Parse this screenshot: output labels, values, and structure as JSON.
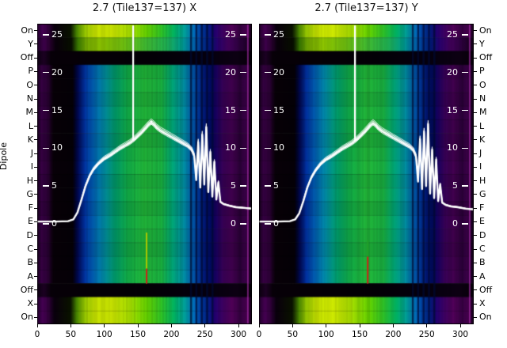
{
  "figure": {
    "dipole_axis_label": "Dipole",
    "background": "#ffffff",
    "text_color": "#000000",
    "curve_color": "#ffffff"
  },
  "chart_data": {
    "type": "heatmap",
    "x_range": [
      0,
      320
    ],
    "x_tick_values": [
      0,
      50,
      100,
      150,
      200,
      250,
      300
    ],
    "x_tick_labels": [
      "0",
      "50",
      "100",
      "150",
      "200",
      "250",
      "300"
    ],
    "amp_values": [
      25,
      20,
      15,
      10,
      5,
      0
    ],
    "amp_tick_labels": [
      "25",
      "20",
      "15",
      "10",
      "5",
      "0"
    ],
    "amp_range": [
      0,
      25
    ],
    "row_labels": [
      "On",
      "Y",
      "Off",
      "P",
      "O",
      "N",
      "M",
      "L",
      "K",
      "J",
      "I",
      "H",
      "G",
      "F",
      "E",
      "D",
      "C",
      "B",
      "A",
      "Off",
      "X",
      "On"
    ],
    "row_types": [
      "bright",
      "mid",
      "off",
      "body",
      "body",
      "body",
      "body",
      "body",
      "body",
      "body",
      "body",
      "body",
      "body",
      "body",
      "body",
      "body",
      "body",
      "body",
      "body",
      "off",
      "bright",
      "bright"
    ],
    "stripes_x": [
      229,
      237,
      245,
      253,
      261
    ],
    "edge_line": {
      "x": 314,
      "color": "#c233c2"
    },
    "palettes": {
      "bright": [
        [
          0,
          "#20002a"
        ],
        [
          0.025,
          "#4a0058"
        ],
        [
          0.055,
          "#2e0038"
        ],
        [
          0.08,
          "#0a000e"
        ],
        [
          0.155,
          "#0a1400"
        ],
        [
          0.185,
          "#4a8800"
        ],
        [
          0.22,
          "#96c800"
        ],
        [
          0.27,
          "#c8e400"
        ],
        [
          0.35,
          "#d2ee00"
        ],
        [
          0.43,
          "#a8e000"
        ],
        [
          0.51,
          "#66d400"
        ],
        [
          0.58,
          "#2ec428"
        ],
        [
          0.64,
          "#00b464"
        ],
        [
          0.69,
          "#009e9e"
        ],
        [
          0.73,
          "#0070c0"
        ],
        [
          0.76,
          "#0040a4"
        ],
        [
          0.795,
          "#002084"
        ],
        [
          0.825,
          "#220074"
        ],
        [
          0.865,
          "#400064"
        ],
        [
          0.905,
          "#52005a"
        ],
        [
          0.945,
          "#360042"
        ],
        [
          0.975,
          "#46004e"
        ],
        [
          1,
          "#140018"
        ]
      ],
      "mid": [
        [
          0,
          "#1c0024"
        ],
        [
          0.03,
          "#40004e"
        ],
        [
          0.06,
          "#28002e"
        ],
        [
          0.085,
          "#0a000c"
        ],
        [
          0.16,
          "#081000"
        ],
        [
          0.19,
          "#3a7a00"
        ],
        [
          0.23,
          "#74aa00"
        ],
        [
          0.3,
          "#8ec600"
        ],
        [
          0.4,
          "#72c210"
        ],
        [
          0.5,
          "#42ba30"
        ],
        [
          0.6,
          "#20b052"
        ],
        [
          0.67,
          "#009e8a"
        ],
        [
          0.72,
          "#0072b2"
        ],
        [
          0.76,
          "#003c9a"
        ],
        [
          0.8,
          "#001a7a"
        ],
        [
          0.84,
          "#28006e"
        ],
        [
          0.89,
          "#44005e"
        ],
        [
          0.94,
          "#2e0040"
        ],
        [
          1,
          "#140018"
        ]
      ],
      "body": [
        [
          0,
          "#16001c"
        ],
        [
          0.02,
          "#3a0048"
        ],
        [
          0.05,
          "#2c0036"
        ],
        [
          0.075,
          "#090009"
        ],
        [
          0.165,
          "#060008"
        ],
        [
          0.19,
          "#000a54"
        ],
        [
          0.22,
          "#0032a4"
        ],
        [
          0.26,
          "#0062ba"
        ],
        [
          0.31,
          "#0090aa"
        ],
        [
          0.36,
          "#00a272"
        ],
        [
          0.42,
          "#12b04a"
        ],
        [
          0.5,
          "#22b83a"
        ],
        [
          0.58,
          "#1ab242"
        ],
        [
          0.63,
          "#00aa7a"
        ],
        [
          0.68,
          "#0092a2"
        ],
        [
          0.72,
          "#0062b2"
        ],
        [
          0.755,
          "#003294"
        ],
        [
          0.78,
          "#00187a"
        ],
        [
          0.805,
          "#000c62"
        ],
        [
          0.835,
          "#1c0062"
        ],
        [
          0.865,
          "#3a005a"
        ],
        [
          0.905,
          "#440052"
        ],
        [
          0.945,
          "#2c003a"
        ],
        [
          0.97,
          "#3c004a"
        ],
        [
          1,
          "#100016"
        ]
      ],
      "off": [
        [
          0,
          "#0c0010"
        ],
        [
          0.03,
          "#1e0026"
        ],
        [
          0.065,
          "#080009"
        ],
        [
          0.5,
          "#040006"
        ],
        [
          0.8,
          "#060010"
        ],
        [
          0.93,
          "#0e0014"
        ],
        [
          1,
          "#070009"
        ]
      ]
    },
    "panels": [
      {
        "title": "2.7 (Tile137=137) X",
        "spike_x": 143,
        "markers": [
          {
            "x": 163,
            "f0": 0.695,
            "f1": 0.815,
            "color": "#aac800",
            "w": 2
          },
          {
            "x": 163,
            "f0": 0.815,
            "f1": 0.865,
            "color": "#cc2418",
            "w": 2
          }
        ],
        "line": [
          [
            0,
            0.3
          ],
          [
            28,
            0.3
          ],
          [
            46,
            0.35
          ],
          [
            54,
            0.6
          ],
          [
            60,
            1.5
          ],
          [
            66,
            3.2
          ],
          [
            72,
            5.0
          ],
          [
            78,
            6.3
          ],
          [
            84,
            7.2
          ],
          [
            92,
            8.0
          ],
          [
            100,
            8.6
          ],
          [
            108,
            9.0
          ],
          [
            116,
            9.5
          ],
          [
            124,
            10.0
          ],
          [
            132,
            10.4
          ],
          [
            138,
            10.7
          ],
          [
            144,
            11.1
          ],
          [
            150,
            11.6
          ],
          [
            156,
            12.1
          ],
          [
            161,
            12.6
          ],
          [
            166,
            13.1
          ],
          [
            170,
            13.4
          ],
          [
            174,
            13.1
          ],
          [
            178,
            12.7
          ],
          [
            184,
            12.3
          ],
          [
            192,
            11.9
          ],
          [
            200,
            11.5
          ],
          [
            208,
            11.1
          ],
          [
            216,
            10.7
          ],
          [
            224,
            10.3
          ],
          [
            230,
            9.8
          ],
          [
            234,
            9.0
          ],
          [
            237,
            5.8
          ],
          [
            240,
            10.8
          ],
          [
            243,
            4.8
          ],
          [
            246,
            11.8
          ],
          [
            249,
            5.2
          ],
          [
            252,
            12.8
          ],
          [
            255,
            4.2
          ],
          [
            258,
            9.5
          ],
          [
            261,
            3.6
          ],
          [
            264,
            8.2
          ],
          [
            267,
            3.2
          ],
          [
            270,
            5.5
          ],
          [
            273,
            2.9
          ],
          [
            278,
            2.6
          ],
          [
            286,
            2.4
          ],
          [
            296,
            2.2
          ],
          [
            308,
            2.1
          ],
          [
            320,
            2.0
          ]
        ]
      },
      {
        "title": "2.7 (Tile137=137) Y",
        "spike_x": 143,
        "markers": [
          {
            "x": 162,
            "f0": 0.72,
            "f1": 0.775,
            "color": "#22a02a",
            "w": 2
          },
          {
            "x": 162,
            "f0": 0.775,
            "f1": 0.865,
            "color": "#cc2418",
            "w": 2
          }
        ],
        "line": [
          [
            0,
            0.3
          ],
          [
            28,
            0.3
          ],
          [
            46,
            0.35
          ],
          [
            54,
            0.6
          ],
          [
            60,
            1.4
          ],
          [
            66,
            3.0
          ],
          [
            72,
            4.8
          ],
          [
            78,
            6.1
          ],
          [
            84,
            7.0
          ],
          [
            92,
            7.9
          ],
          [
            100,
            8.5
          ],
          [
            108,
            8.9
          ],
          [
            116,
            9.4
          ],
          [
            124,
            9.9
          ],
          [
            132,
            10.3
          ],
          [
            138,
            10.6
          ],
          [
            144,
            11.0
          ],
          [
            150,
            11.5
          ],
          [
            156,
            12.0
          ],
          [
            161,
            12.5
          ],
          [
            166,
            13.0
          ],
          [
            170,
            13.3
          ],
          [
            174,
            13.0
          ],
          [
            178,
            12.6
          ],
          [
            184,
            12.2
          ],
          [
            192,
            11.8
          ],
          [
            200,
            11.4
          ],
          [
            208,
            11.0
          ],
          [
            216,
            10.6
          ],
          [
            224,
            10.2
          ],
          [
            230,
            9.7
          ],
          [
            234,
            8.9
          ],
          [
            237,
            5.6
          ],
          [
            240,
            11.2
          ],
          [
            243,
            4.6
          ],
          [
            246,
            12.2
          ],
          [
            249,
            5.0
          ],
          [
            252,
            13.2
          ],
          [
            255,
            4.0
          ],
          [
            258,
            9.8
          ],
          [
            261,
            3.4
          ],
          [
            264,
            8.5
          ],
          [
            267,
            3.0
          ],
          [
            270,
            5.2
          ],
          [
            273,
            2.8
          ],
          [
            278,
            2.5
          ],
          [
            286,
            2.3
          ],
          [
            296,
            2.2
          ],
          [
            308,
            2.0
          ],
          [
            320,
            1.9
          ]
        ]
      }
    ]
  }
}
